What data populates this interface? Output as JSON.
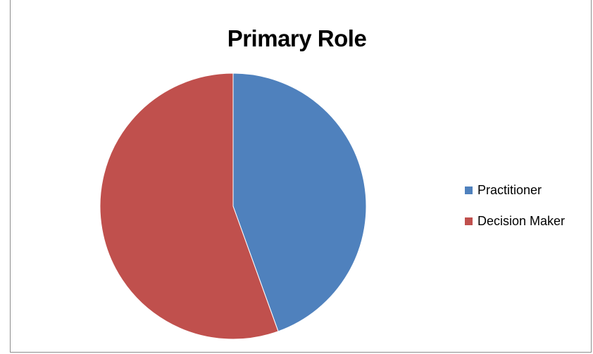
{
  "chart_data": {
    "type": "pie",
    "title": "Primary Role",
    "slices": [
      {
        "label": "Practitioner",
        "value": 44.5,
        "color": "#4f81bd"
      },
      {
        "label": "Decision Maker",
        "value": 55.5,
        "color": "#c0504d"
      }
    ],
    "legend_position": "right"
  }
}
